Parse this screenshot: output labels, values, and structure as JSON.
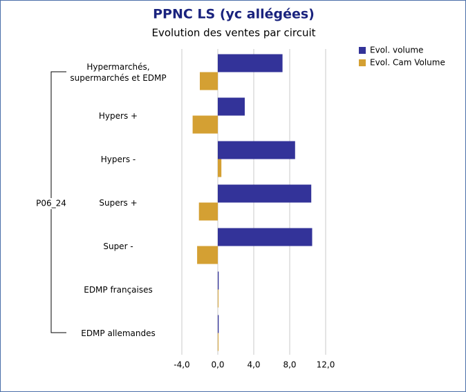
{
  "chart_data": {
    "type": "hbar",
    "title": "PPNC LS (yc allégées)",
    "subtitle": "Evolution des ventes par circuit",
    "group_label": "P06_24",
    "categories": [
      "Hypermarchés, supermarchés et EDMP",
      "Hypers +",
      "Hypers -",
      "Supers +",
      "Super -",
      "EDMP françaises",
      "EDMP allemandes"
    ],
    "series": [
      {
        "name": "Evol. volume",
        "color": "#333399",
        "values": [
          7.2,
          3.0,
          8.6,
          10.4,
          10.5,
          0.1,
          0.1
        ]
      },
      {
        "name": "Evol. Cam Volume",
        "color": "#d4a033",
        "values": [
          -2.0,
          -2.8,
          0.4,
          -2.1,
          -2.3,
          0.05,
          0.05
        ]
      }
    ],
    "xlim": [
      -4,
      12
    ],
    "xticks": [
      {
        "value": -4,
        "label": "-4,0"
      },
      {
        "value": 0,
        "label": "0,0"
      },
      {
        "value": 4,
        "label": "4,0"
      },
      {
        "value": 8,
        "label": "8,0"
      },
      {
        "value": 12,
        "label": "12,0"
      }
    ],
    "grid": true,
    "legend": "top-right"
  }
}
